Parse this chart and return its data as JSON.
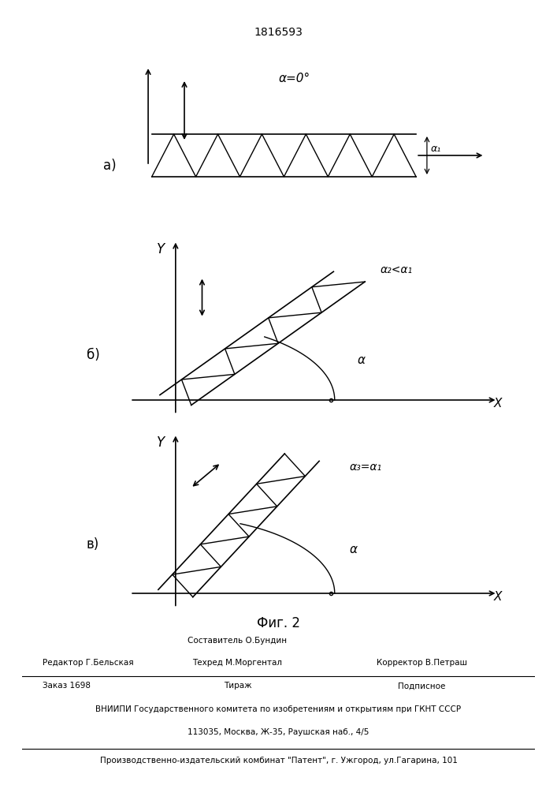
{
  "title": "1816593",
  "fig_caption": "Фиг. 2",
  "label_a": "а)",
  "label_b": "б)",
  "label_c": "в)",
  "alpha_a": "α=0°",
  "alpha_b": "α₂<α₁",
  "alpha_c": "α₃=α₁",
  "a1_label": "α₁",
  "alpha_label": "α",
  "Y_label": "Y",
  "X_label": "X",
  "footer_line1": "Составитель О.Бундин",
  "footer_techred": "Техред М.Моргентал",
  "footer_editor": "Редактор Г.Бельская",
  "footer_corrector": "Корректор В.Петраш",
  "footer_order": "Заказ 1698",
  "footer_tirazh": "Тираж",
  "footer_podpisnoe": "Подписное",
  "footer_vniiipi": "ВНИИПИ Государственного комитета по изобретениям и открытиям при ГКНТ СССР",
  "footer_address": "113035, Москва, Ж-35, Раушская наб., 4/5",
  "footer_patent": "Производственно-издательский комбинат \"Патент\", г. Ужгород, ул.Гагарина, 101",
  "bg_color": "#ffffff"
}
